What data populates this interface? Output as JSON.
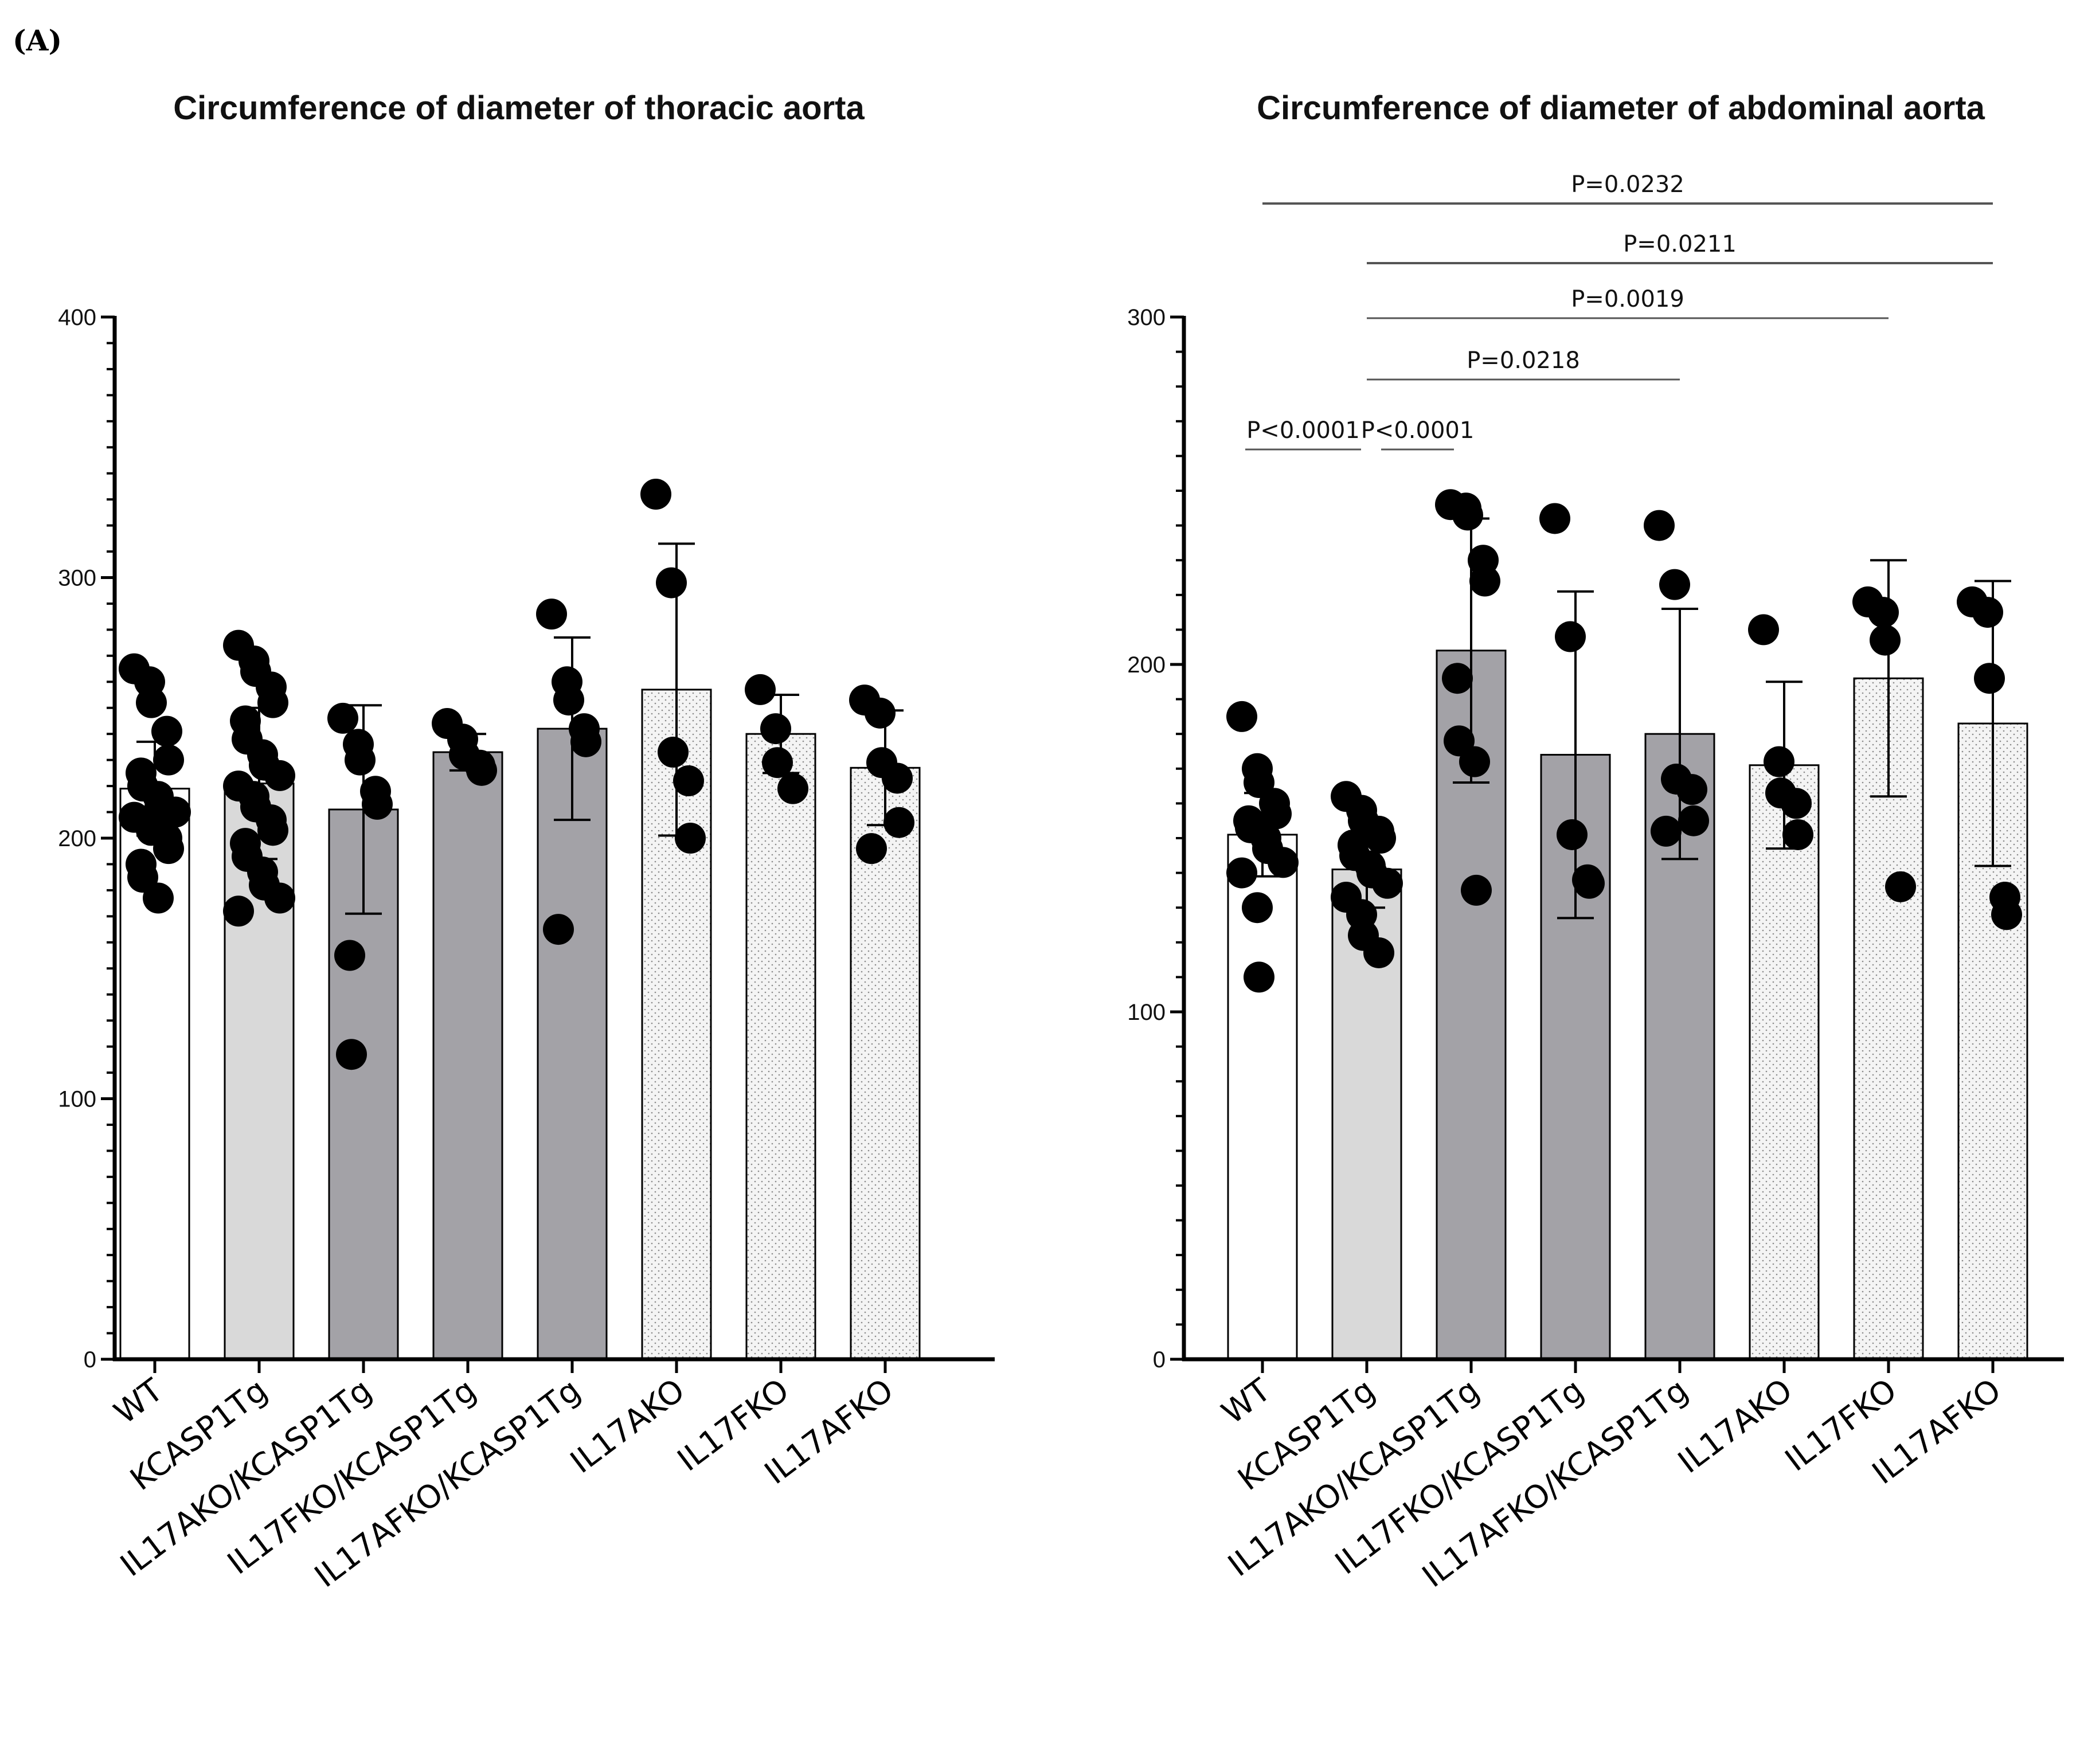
{
  "panel_label": "(A)",
  "colors": {
    "wt": "#ffffff",
    "kcasp1tg": "#d9d9d9",
    "double_ko": "#a3a2a7",
    "dotted_fill": "#f4f4f4",
    "dots": "#000000",
    "axis": "#000000"
  },
  "chart_data": [
    {
      "type": "bar",
      "title": "Circumference of diameter of thoracic aorta",
      "categories": [
        "WT",
        "KCASP1Tg",
        "IL17AKO/KCASP1Tg",
        "IL17FKO/KCASP1Tg",
        "IL17AFKO/KCASP1Tg",
        "IL17AKO",
        "IL17FKO",
        "IL17AFKO"
      ],
      "bar_styles": [
        "white",
        "light",
        "dark",
        "dark",
        "dark",
        "dotted",
        "dotted",
        "dotted"
      ],
      "values": [
        219,
        221,
        211,
        233,
        242,
        257,
        240,
        227
      ],
      "sd": [
        18,
        29,
        40,
        7,
        35,
        56,
        15,
        22
      ],
      "points": [
        [
          265,
          260,
          252,
          241,
          230,
          225,
          220,
          216,
          212,
          210,
          208,
          205,
          203,
          200,
          196,
          190,
          185,
          177
        ],
        [
          274,
          268,
          264,
          258,
          252,
          245,
          238,
          232,
          228,
          224,
          220,
          216,
          212,
          207,
          203,
          198,
          193,
          187,
          182,
          177,
          172
        ],
        [
          246,
          236,
          230,
          218,
          213,
          155,
          117
        ],
        [
          244,
          238,
          232,
          228,
          226
        ],
        [
          286,
          260,
          253,
          242,
          237,
          165
        ],
        [
          332,
          298,
          233,
          222,
          200
        ],
        [
          257,
          242,
          229,
          219
        ],
        [
          253,
          248,
          229,
          223,
          206,
          196
        ]
      ],
      "ylim": [
        0,
        400
      ],
      "yticks": [
        0,
        100,
        200,
        300,
        400
      ],
      "ytick_labels": [
        "0",
        "100",
        "200",
        "300",
        "400"
      ],
      "xlabel": "",
      "ylabel": ""
    },
    {
      "type": "bar",
      "title": "Circumference of diameter of abdominal aorta",
      "categories": [
        "WT",
        "KCASP1Tg",
        "IL17AKO/KCASP1Tg",
        "IL17FKO/KCASP1Tg",
        "IL17AFKO/KCASP1Tg",
        "IL17AKO",
        "IL17FKO",
        "IL17AFKO"
      ],
      "bar_styles": [
        "white",
        "light",
        "dark",
        "dark",
        "dark",
        "dotted",
        "dotted",
        "dotted"
      ],
      "values": [
        151,
        141,
        204,
        174,
        180,
        171,
        196,
        183
      ],
      "sd": [
        12,
        11,
        38,
        47,
        36,
        24,
        34,
        41
      ],
      "points": [
        [
          185,
          170,
          166,
          160,
          157,
          155,
          153,
          150,
          147,
          143,
          140,
          130,
          110
        ],
        [
          162,
          158,
          155,
          152,
          150,
          148,
          145,
          142,
          140,
          137,
          133,
          128,
          122,
          117
        ],
        [
          246,
          245,
          243,
          230,
          224,
          196,
          178,
          172,
          135
        ],
        [
          242,
          208,
          151,
          138,
          137
        ],
        [
          240,
          223,
          167,
          164,
          155,
          152
        ],
        [
          210,
          172,
          163,
          160,
          151
        ],
        [
          218,
          215,
          207,
          136
        ],
        [
          218,
          215,
          196,
          133,
          128
        ]
      ],
      "ylim": [
        0,
        300
      ],
      "yticks": [
        0,
        100,
        200,
        300
      ],
      "ytick_labels": [
        "0",
        "100",
        "200",
        "300"
      ],
      "xlabel": "",
      "ylabel": "",
      "comparisons": [
        {
          "from": 0,
          "to": 7,
          "label": "P=0.0232"
        },
        {
          "from": 1,
          "to": 7,
          "label": "P=0.0211"
        },
        {
          "from": 1,
          "to": 6,
          "label": "P=0.0019"
        },
        {
          "from": 1,
          "to": 4,
          "label": "P=0.0218"
        },
        {
          "from": 0,
          "to": 1,
          "label": "P<0.0001"
        },
        {
          "from": 1,
          "to": 2,
          "label": "P<0.0001"
        }
      ]
    }
  ]
}
